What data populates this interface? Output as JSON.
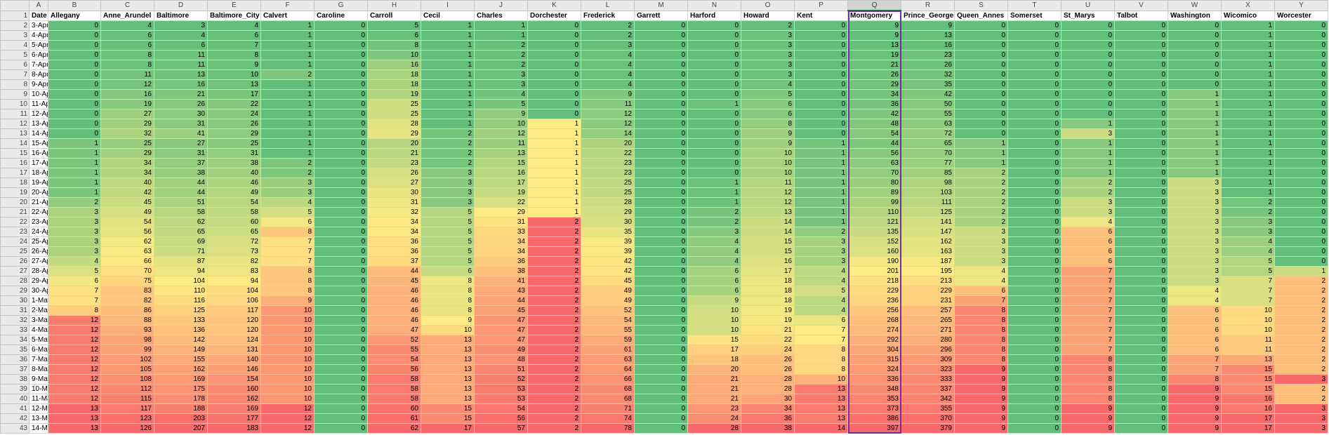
{
  "sheet": {
    "column_letters": [
      "A",
      "B",
      "C",
      "D",
      "E",
      "F",
      "G",
      "H",
      "I",
      "J",
      "K",
      "L",
      "M",
      "N",
      "O",
      "P",
      "Q",
      "R",
      "S",
      "T",
      "U",
      "V",
      "W",
      "X",
      "Y"
    ],
    "row_numbers": [
      1,
      2,
      3,
      4,
      5,
      6,
      7,
      8,
      9,
      10,
      11,
      12,
      13,
      14,
      15,
      16,
      17,
      18,
      19,
      20,
      21,
      22,
      23,
      24,
      25,
      26,
      27,
      28,
      29,
      30,
      31,
      32,
      33,
      34,
      35,
      36,
      37,
      38,
      39,
      40,
      41,
      42,
      43
    ],
    "headers": [
      "Date",
      "Allegany",
      "Anne_Arundel",
      "Baltimore",
      "Baltimore_City",
      "Calvert",
      "Caroline",
      "Carroll",
      "Cecil",
      "Charles",
      "Dorchester",
      "Frederick",
      "Garrett",
      "Harford",
      "Howard",
      "Kent",
      "Montgomery",
      "Prince_Georges",
      "Queen_Annes",
      "Somerset",
      "St_Marys",
      "Talbot",
      "Washington",
      "Wicomico",
      "Worcester"
    ],
    "dates": [
      "3-Apr",
      "4-Apr",
      "5-Apr",
      "6-Apr",
      "7-Apr",
      "8-Apr",
      "9-Apr",
      "10-Apr",
      "11-Apr",
      "12-Apr",
      "13-Apr",
      "14-Apr",
      "15-Apr",
      "16-Apr",
      "17-Apr",
      "18-Apr",
      "19-Apr",
      "20-Apr",
      "21-Apr",
      "22-Apr",
      "23-Apr",
      "24-Apr",
      "25-Apr",
      "26-Apr",
      "27-Apr",
      "28-Apr",
      "29-Apr",
      "30-Apr",
      "1-May",
      "2-May",
      "3-May",
      "4-May",
      "5-May",
      "6-May",
      "7-May",
      "8-May",
      "9-May",
      "10-May",
      "11-May",
      "12-May",
      "13-May",
      "14-May"
    ],
    "values": [
      [
        0,
        4,
        3,
        4,
        1,
        0,
        5,
        1,
        1,
        0,
        2,
        0,
        0,
        2,
        0,
        9,
        9,
        0,
        0,
        0,
        0,
        0,
        1,
        0
      ],
      [
        0,
        6,
        4,
        6,
        1,
        0,
        6,
        1,
        1,
        0,
        2,
        0,
        0,
        3,
        0,
        9,
        13,
        0,
        0,
        0,
        0,
        0,
        1,
        0
      ],
      [
        0,
        6,
        6,
        7,
        1,
        0,
        8,
        1,
        2,
        0,
        3,
        0,
        0,
        3,
        0,
        13,
        16,
        0,
        0,
        0,
        0,
        0,
        1,
        0
      ],
      [
        0,
        8,
        11,
        8,
        1,
        0,
        10,
        1,
        2,
        0,
        4,
        0,
        0,
        3,
        0,
        19,
        23,
        0,
        0,
        0,
        0,
        0,
        1,
        0
      ],
      [
        0,
        8,
        11,
        9,
        1,
        0,
        16,
        1,
        2,
        0,
        4,
        0,
        0,
        3,
        0,
        21,
        26,
        0,
        0,
        0,
        0,
        0,
        1,
        0
      ],
      [
        0,
        11,
        13,
        10,
        2,
        0,
        18,
        1,
        3,
        0,
        4,
        0,
        0,
        3,
        0,
        26,
        32,
        0,
        0,
        0,
        0,
        0,
        1,
        0
      ],
      [
        0,
        12,
        16,
        13,
        1,
        0,
        18,
        1,
        3,
        0,
        4,
        0,
        0,
        4,
        0,
        29,
        35,
        0,
        0,
        0,
        0,
        0,
        1,
        0
      ],
      [
        0,
        16,
        21,
        17,
        1,
        0,
        19,
        1,
        4,
        0,
        9,
        0,
        0,
        5,
        0,
        34,
        42,
        0,
        0,
        0,
        0,
        1,
        1,
        0
      ],
      [
        0,
        19,
        26,
        22,
        1,
        0,
        25,
        1,
        5,
        0,
        11,
        0,
        1,
        6,
        0,
        36,
        50,
        0,
        0,
        0,
        0,
        1,
        1,
        0
      ],
      [
        0,
        27,
        30,
        24,
        1,
        0,
        25,
        1,
        9,
        0,
        12,
        0,
        0,
        6,
        0,
        42,
        55,
        0,
        0,
        0,
        0,
        1,
        1,
        0
      ],
      [
        0,
        29,
        31,
        26,
        1,
        0,
        28,
        1,
        10,
        1,
        12,
        0,
        0,
        8,
        0,
        48,
        63,
        0,
        0,
        1,
        0,
        1,
        1,
        0
      ],
      [
        0,
        32,
        41,
        29,
        1,
        0,
        29,
        2,
        12,
        1,
        14,
        0,
        0,
        9,
        0,
        54,
        72,
        0,
        0,
        3,
        0,
        1,
        1,
        0
      ],
      [
        1,
        25,
        27,
        25,
        1,
        0,
        20,
        2,
        11,
        1,
        20,
        0,
        0,
        9,
        1,
        44,
        65,
        1,
        0,
        1,
        0,
        1,
        1,
        0
      ],
      [
        1,
        29,
        31,
        31,
        1,
        0,
        21,
        2,
        13,
        1,
        22,
        0,
        0,
        10,
        1,
        56,
        70,
        1,
        0,
        1,
        0,
        1,
        1,
        0
      ],
      [
        1,
        34,
        37,
        38,
        2,
        0,
        23,
        2,
        15,
        1,
        23,
        0,
        0,
        10,
        1,
        63,
        77,
        1,
        0,
        1,
        0,
        1,
        1,
        0
      ],
      [
        1,
        34,
        38,
        40,
        2,
        0,
        26,
        3,
        16,
        1,
        23,
        0,
        0,
        10,
        1,
        70,
        85,
        2,
        0,
        1,
        0,
        1,
        1,
        0
      ],
      [
        1,
        40,
        44,
        46,
        3,
        0,
        27,
        3,
        17,
        1,
        25,
        0,
        1,
        11,
        1,
        80,
        98,
        2,
        0,
        2,
        0,
        3,
        1,
        0
      ],
      [
        1,
        42,
        44,
        49,
        3,
        0,
        30,
        3,
        19,
        1,
        25,
        0,
        1,
        12,
        1,
        89,
        103,
        2,
        0,
        2,
        0,
        3,
        1,
        0
      ],
      [
        2,
        45,
        51,
        54,
        4,
        0,
        31,
        3,
        22,
        1,
        28,
        0,
        1,
        12,
        1,
        99,
        111,
        2,
        0,
        3,
        0,
        3,
        2,
        0
      ],
      [
        3,
        49,
        58,
        58,
        5,
        0,
        32,
        5,
        29,
        1,
        29,
        0,
        2,
        13,
        1,
        110,
        125,
        2,
        0,
        3,
        0,
        3,
        2,
        0
      ],
      [
        3,
        54,
        62,
        60,
        6,
        0,
        34,
        5,
        31,
        2,
        30,
        0,
        2,
        14,
        1,
        121,
        141,
        2,
        0,
        4,
        0,
        3,
        3,
        0
      ],
      [
        3,
        56,
        65,
        65,
        8,
        0,
        34,
        5,
        33,
        2,
        35,
        0,
        3,
        14,
        2,
        135,
        147,
        3,
        0,
        6,
        0,
        3,
        3,
        0
      ],
      [
        3,
        62,
        69,
        72,
        7,
        0,
        36,
        5,
        34,
        2,
        39,
        0,
        4,
        15,
        3,
        152,
        162,
        3,
        0,
        6,
        0,
        3,
        4,
        0
      ],
      [
        3,
        63,
        71,
        73,
        7,
        0,
        36,
        5,
        34,
        2,
        39,
        0,
        4,
        15,
        3,
        160,
        163,
        3,
        0,
        6,
        0,
        3,
        4,
        0
      ],
      [
        4,
        66,
        87,
        82,
        7,
        0,
        37,
        5,
        36,
        2,
        42,
        0,
        4,
        16,
        3,
        190,
        187,
        3,
        0,
        6,
        0,
        3,
        5,
        0
      ],
      [
        5,
        70,
        94,
        83,
        8,
        0,
        44,
        6,
        38,
        2,
        42,
        0,
        6,
        17,
        4,
        201,
        195,
        4,
        0,
        7,
        0,
        3,
        5,
        1
      ],
      [
        6,
        75,
        104,
        94,
        8,
        0,
        45,
        8,
        41,
        2,
        45,
        0,
        6,
        18,
        4,
        218,
        213,
        4,
        0,
        7,
        0,
        3,
        7,
        2
      ],
      [
        7,
        83,
        110,
        104,
        8,
        0,
        46,
        8,
        43,
        2,
        49,
        0,
        6,
        18,
        5,
        229,
        229,
        6,
        0,
        7,
        0,
        4,
        7,
        2
      ],
      [
        7,
        82,
        116,
        106,
        9,
        0,
        46,
        8,
        44,
        2,
        49,
        0,
        9,
        18,
        4,
        236,
        231,
        7,
        0,
        7,
        0,
        4,
        7,
        2
      ],
      [
        8,
        86,
        125,
        117,
        10,
        0,
        46,
        8,
        45,
        2,
        52,
        0,
        10,
        19,
        4,
        256,
        257,
        8,
        0,
        7,
        0,
        6,
        10,
        2
      ],
      [
        12,
        88,
        133,
        120,
        10,
        0,
        46,
        9,
        47,
        2,
        54,
        0,
        10,
        19,
        6,
        268,
        265,
        8,
        0,
        7,
        0,
        6,
        10,
        2
      ],
      [
        12,
        93,
        136,
        120,
        10,
        0,
        47,
        10,
        47,
        2,
        55,
        0,
        10,
        21,
        7,
        274,
        271,
        8,
        0,
        7,
        0,
        6,
        10,
        2
      ],
      [
        12,
        98,
        142,
        124,
        10,
        0,
        52,
        13,
        47,
        2,
        59,
        0,
        15,
        22,
        7,
        292,
        280,
        8,
        0,
        7,
        0,
        6,
        11,
        2
      ],
      [
        12,
        99,
        149,
        131,
        10,
        0,
        55,
        13,
        49,
        2,
        61,
        0,
        17,
        24,
        8,
        304,
        296,
        8,
        0,
        7,
        0,
        6,
        11,
        2
      ],
      [
        12,
        102,
        155,
        140,
        10,
        0,
        54,
        13,
        48,
        2,
        63,
        0,
        18,
        26,
        8,
        315,
        309,
        8,
        0,
        8,
        0,
        7,
        13,
        2
      ],
      [
        12,
        105,
        162,
        146,
        10,
        0,
        56,
        13,
        51,
        2,
        64,
        0,
        20,
        26,
        8,
        324,
        323,
        9,
        0,
        8,
        0,
        7,
        15,
        2
      ],
      [
        12,
        108,
        169,
        154,
        10,
        0,
        58,
        13,
        52,
        2,
        66,
        0,
        21,
        28,
        10,
        336,
        333,
        9,
        0,
        8,
        0,
        8,
        15,
        3
      ],
      [
        12,
        112,
        175,
        160,
        10,
        0,
        58,
        13,
        53,
        2,
        68,
        0,
        21,
        28,
        13,
        348,
        337,
        9,
        0,
        8,
        0,
        9,
        15,
        2
      ],
      [
        12,
        115,
        178,
        162,
        10,
        0,
        58,
        13,
        53,
        2,
        68,
        0,
        21,
        30,
        13,
        353,
        342,
        9,
        0,
        8,
        0,
        9,
        16,
        2
      ],
      [
        13,
        117,
        188,
        169,
        12,
        0,
        60,
        15,
        54,
        2,
        71,
        0,
        23,
        34,
        13,
        373,
        355,
        9,
        0,
        9,
        0,
        9,
        16,
        3
      ],
      [
        13,
        123,
        203,
        177,
        12,
        0,
        61,
        15,
        56,
        2,
        74,
        0,
        24,
        36,
        13,
        386,
        370,
        9,
        0,
        9,
        0,
        9,
        17,
        3
      ],
      [
        13,
        126,
        207,
        183,
        12,
        0,
        62,
        17,
        57,
        2,
        78,
        0,
        28,
        38,
        14,
        397,
        379,
        9,
        0,
        9,
        0,
        9,
        17,
        3
      ]
    ],
    "selected_column_letter": "Q",
    "selected_column_header": "Montgomery",
    "colors": {
      "scale_min": "#63be7b",
      "scale_mid": "#ffeb84",
      "scale_max": "#f8696b",
      "selection": "#7030a0",
      "header_bg": "#e9e9e9"
    }
  }
}
